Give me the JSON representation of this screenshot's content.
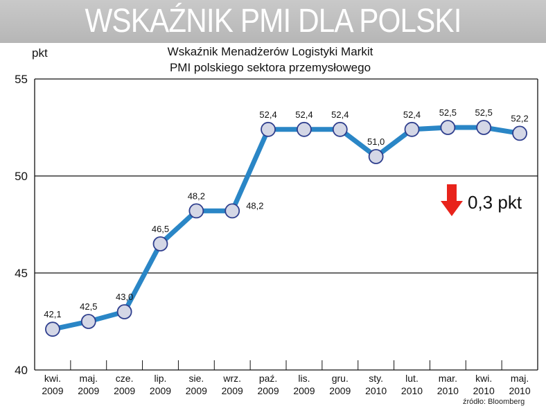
{
  "banner": {
    "title": "WSKAŹNIK PMI DLA POLSKI"
  },
  "chart_data": {
    "type": "line",
    "title": "Wskaźnik Menadżerów Logistyki Markit",
    "subtitle": "PMI polskiego sektora przemysłowego",
    "ylabel": "pkt",
    "ylim": [
      40,
      55
    ],
    "yticks": [
      40,
      45,
      50,
      55
    ],
    "grid": "horizontal",
    "categories": [
      [
        "kwi.",
        "2009"
      ],
      [
        "maj.",
        "2009"
      ],
      [
        "cze.",
        "2009"
      ],
      [
        "lip.",
        "2009"
      ],
      [
        "sie.",
        "2009"
      ],
      [
        "wrz.",
        "2009"
      ],
      [
        "paź.",
        "2009"
      ],
      [
        "lis.",
        "2009"
      ],
      [
        "gru.",
        "2009"
      ],
      [
        "sty.",
        "2010"
      ],
      [
        "lut.",
        "2010"
      ],
      [
        "mar.",
        "2010"
      ],
      [
        "kwi.",
        "2010"
      ],
      [
        "maj.",
        "2010"
      ]
    ],
    "values": [
      42.1,
      42.5,
      43.0,
      46.5,
      48.2,
      48.2,
      52.4,
      52.4,
      52.4,
      51.0,
      52.4,
      52.5,
      52.5,
      52.2
    ],
    "value_labels": [
      "42,1",
      "42,5",
      "43,0",
      "46,5",
      "48,2",
      "48,2",
      "52,4",
      "52,4",
      "52,4",
      "51,0",
      "52,4",
      "52,5",
      "52,5",
      "52,2"
    ],
    "line_color": "#2a86c6",
    "marker_fill": "#d4d7e6",
    "marker_stroke": "#2f3f8e",
    "change": {
      "text": "0,3 pkt",
      "direction": "down",
      "color": "#e8231b"
    },
    "source": "źródło: Bloomberg"
  }
}
